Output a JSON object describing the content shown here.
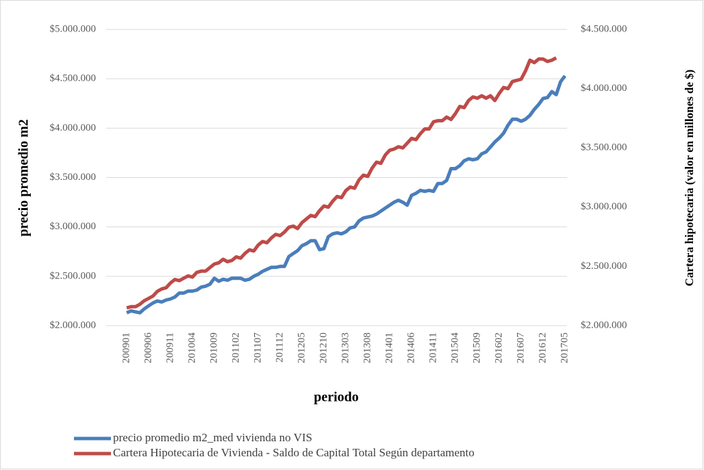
{
  "chart_data": {
    "type": "line",
    "x_label": "periodo",
    "y_label": "precio promedio m2",
    "y2_label": "Cartera hipotecaria (valor en millones de $)",
    "grid": true,
    "categories": [
      "200901",
      null,
      null,
      null,
      null,
      "200906",
      null,
      null,
      null,
      null,
      "200911",
      null,
      null,
      null,
      null,
      "201004",
      null,
      null,
      null,
      null,
      "201009",
      null,
      null,
      null,
      null,
      "201102",
      null,
      null,
      null,
      null,
      "201107",
      null,
      null,
      null,
      null,
      "201112",
      null,
      null,
      null,
      null,
      "201205",
      null,
      null,
      null,
      null,
      "201210",
      null,
      null,
      null,
      null,
      "201303",
      null,
      null,
      null,
      null,
      "201308",
      null,
      null,
      null,
      null,
      "201401",
      null,
      null,
      null,
      null,
      "201406",
      null,
      null,
      null,
      null,
      "201411",
      null,
      null,
      null,
      null,
      "201504",
      null,
      null,
      null,
      null,
      "201509",
      null,
      null,
      null,
      null,
      "201602",
      null,
      null,
      null,
      null,
      "201607",
      null,
      null,
      null,
      null,
      "201612",
      null,
      null,
      null,
      null,
      "201705"
    ],
    "ylim": [
      2000000,
      5000000
    ],
    "yticks": [
      {
        "value": 2000000,
        "label": "$2.000.000"
      },
      {
        "value": 2500000,
        "label": "$2.500.000"
      },
      {
        "value": 3000000,
        "label": "$3.000.000"
      },
      {
        "value": 3500000,
        "label": "$3.500.000"
      },
      {
        "value": 4000000,
        "label": "$4.000.000"
      },
      {
        "value": 4500000,
        "label": "$4.500.000"
      },
      {
        "value": 5000000,
        "label": "$5.000.000"
      }
    ],
    "y2lim": [
      2000000,
      4500000
    ],
    "y2ticks": [
      {
        "value": 2000000,
        "label": "$2.000.000"
      },
      {
        "value": 2500000,
        "label": "$2.500.000"
      },
      {
        "value": 3000000,
        "label": "$3.000.000"
      },
      {
        "value": 3500000,
        "label": "$3.500.000"
      },
      {
        "value": 4000000,
        "label": "$4.000.000"
      },
      {
        "value": 4500000,
        "label": "$4.500.000"
      }
    ],
    "series": [
      {
        "name": "precio promedio m2_med vivienda no VIS",
        "color": "#4a7ebb",
        "values": [
          2130000,
          2150000,
          2140000,
          2130000,
          2170000,
          2200000,
          2230000,
          2250000,
          2240000,
          2260000,
          2270000,
          2290000,
          2330000,
          2330000,
          2350000,
          2350000,
          2360000,
          2390000,
          2400000,
          2420000,
          2480000,
          2450000,
          2470000,
          2460000,
          2480000,
          2480000,
          2480000,
          2460000,
          2470000,
          2500000,
          2520000,
          2550000,
          2570000,
          2590000,
          2590000,
          2600000,
          2600000,
          2700000,
          2730000,
          2760000,
          2810000,
          2830000,
          2860000,
          2860000,
          2770000,
          2780000,
          2900000,
          2930000,
          2940000,
          2930000,
          2950000,
          2990000,
          3000000,
          3060000,
          3090000,
          3100000,
          3110000,
          3130000,
          3160000,
          3190000,
          3220000,
          3250000,
          3270000,
          3250000,
          3220000,
          3320000,
          3340000,
          3370000,
          3360000,
          3370000,
          3360000,
          3440000,
          3440000,
          3470000,
          3590000,
          3590000,
          3620000,
          3670000,
          3690000,
          3680000,
          3690000,
          3740000,
          3760000,
          3810000,
          3860000,
          3900000,
          3950000,
          4030000,
          4090000,
          4090000,
          4070000,
          4090000,
          4130000,
          4190000,
          4240000,
          4300000,
          4310000,
          4370000,
          4340000,
          4470000,
          4530000
        ]
      },
      {
        "name": "Cartera Hipotecaria de Vivienda - Saldo de Capital Total Según departamento",
        "color": "#be4b48",
        "axis": "y2",
        "values": [
          2150000,
          2160000,
          2160000,
          2180000,
          2210000,
          2230000,
          2250000,
          2290000,
          2310000,
          2320000,
          2360000,
          2390000,
          2380000,
          2400000,
          2420000,
          2410000,
          2450000,
          2460000,
          2460000,
          2490000,
          2520000,
          2530000,
          2560000,
          2540000,
          2550000,
          2580000,
          2570000,
          2610000,
          2640000,
          2630000,
          2680000,
          2710000,
          2700000,
          2740000,
          2770000,
          2760000,
          2790000,
          2830000,
          2840000,
          2820000,
          2870000,
          2900000,
          2930000,
          2920000,
          2970000,
          3010000,
          3000000,
          3050000,
          3090000,
          3080000,
          3140000,
          3170000,
          3160000,
          3230000,
          3270000,
          3260000,
          3330000,
          3380000,
          3370000,
          3440000,
          3480000,
          3490000,
          3510000,
          3500000,
          3540000,
          3580000,
          3570000,
          3620000,
          3660000,
          3660000,
          3720000,
          3730000,
          3730000,
          3760000,
          3740000,
          3790000,
          3850000,
          3840000,
          3900000,
          3930000,
          3920000,
          3940000,
          3920000,
          3940000,
          3900000,
          3960000,
          4010000,
          4000000,
          4060000,
          4070000,
          4080000,
          4150000,
          4240000,
          4220000,
          4250000,
          4250000,
          4230000,
          4240000,
          4260000,
          null,
          null
        ]
      }
    ]
  }
}
